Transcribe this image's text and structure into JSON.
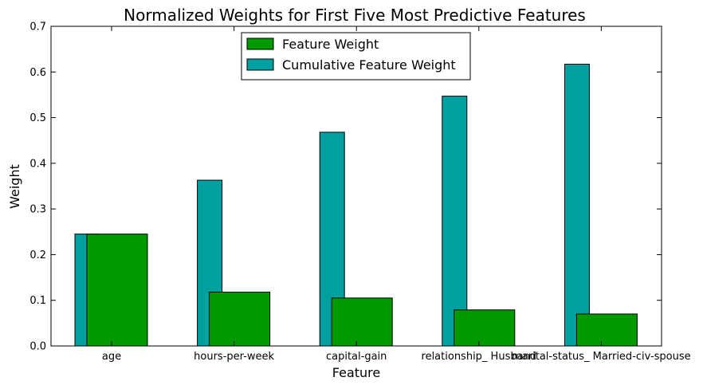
{
  "chart_data": {
    "type": "bar",
    "title": "Normalized Weights for First Five Most Predictive Features",
    "xlabel": "Feature",
    "ylabel": "Weight",
    "ylim": [
      0,
      0.7
    ],
    "yticks": [
      "0.0",
      "0.1",
      "0.2",
      "0.3",
      "0.4",
      "0.5",
      "0.6",
      "0.7"
    ],
    "categories": [
      "age",
      "hours-per-week",
      "capital-gain",
      "relationship_ Husband",
      "marital-status_ Married-civ-spouse"
    ],
    "series": [
      {
        "name": "Feature Weight",
        "color": "#009900",
        "values": [
          0.245,
          0.118,
          0.105,
          0.079,
          0.07
        ]
      },
      {
        "name": "Cumulative Feature Weight",
        "color": "#00a0a0",
        "values": [
          0.245,
          0.363,
          0.468,
          0.547,
          0.617
        ]
      }
    ],
    "legend_position": "top-center",
    "grid": false
  }
}
